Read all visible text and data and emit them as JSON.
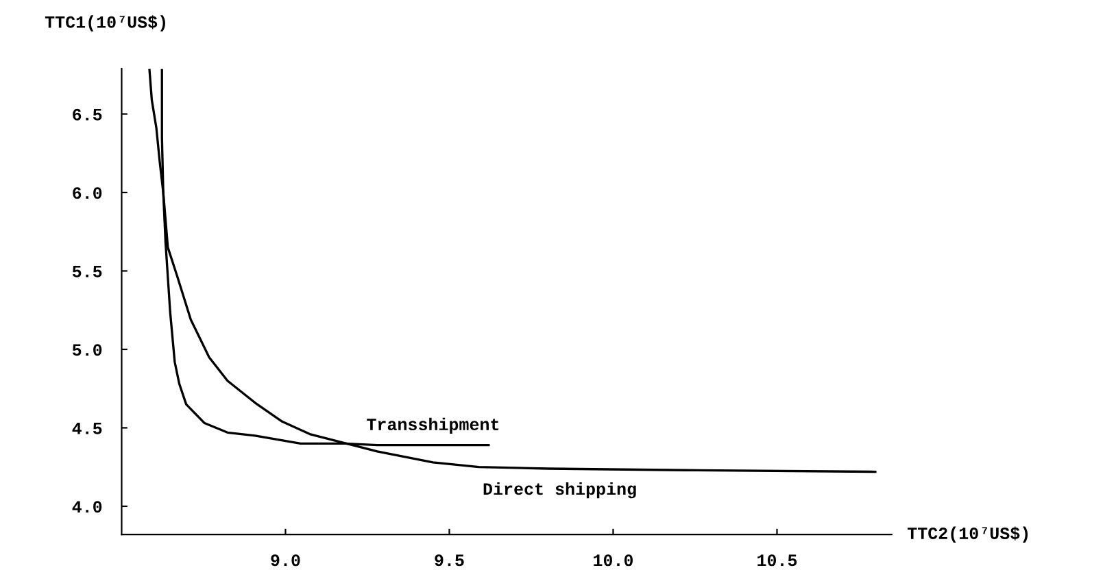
{
  "chart_data": {
    "type": "line",
    "xlabel": "TTC2(10⁷US$)",
    "ylabel": "TTC1(10⁷US$)",
    "xlim": [
      8.5,
      10.85
    ],
    "ylim": [
      3.82,
      6.79
    ],
    "xticks": [
      {
        "value": 9,
        "label": "9.0"
      },
      9.5,
      {
        "value": 10,
        "label": "10.0"
      },
      10.5
    ],
    "yticks": [
      {
        "value": 4,
        "label": "4.0"
      },
      4.5,
      {
        "value": 5,
        "label": "5.0"
      },
      5.5,
      {
        "value": 6,
        "label": "6.0"
      },
      6.5
    ],
    "grid": false,
    "legend": false,
    "marker": "none",
    "line_style": "solid",
    "series": [
      {
        "name": "Transshipment",
        "color": "#000000",
        "x": [
          8.585,
          8.592,
          8.606,
          8.616,
          8.627,
          8.634,
          8.648,
          8.662,
          8.676,
          8.697,
          8.753,
          8.823,
          8.907,
          9.046,
          9.18,
          9.28,
          9.62
        ],
        "values": [
          6.78,
          6.59,
          6.41,
          6.2,
          6.0,
          5.68,
          5.24,
          4.92,
          4.78,
          4.65,
          4.53,
          4.47,
          4.45,
          4.4,
          4.4,
          4.39,
          4.39
        ]
      },
      {
        "name": "Direct shipping",
        "color": "#000000",
        "x": [
          8.623,
          8.623,
          8.627,
          8.641,
          8.669,
          8.711,
          8.767,
          8.823,
          8.907,
          8.99,
          9.074,
          9.186,
          9.28,
          9.45,
          9.59,
          9.8,
          10.22,
          10.8
        ],
        "values": [
          6.78,
          6.35,
          6.0,
          5.65,
          5.47,
          5.19,
          4.95,
          4.8,
          4.66,
          4.54,
          4.46,
          4.4,
          4.35,
          4.28,
          4.25,
          4.24,
          4.23,
          4.22
        ]
      }
    ]
  }
}
